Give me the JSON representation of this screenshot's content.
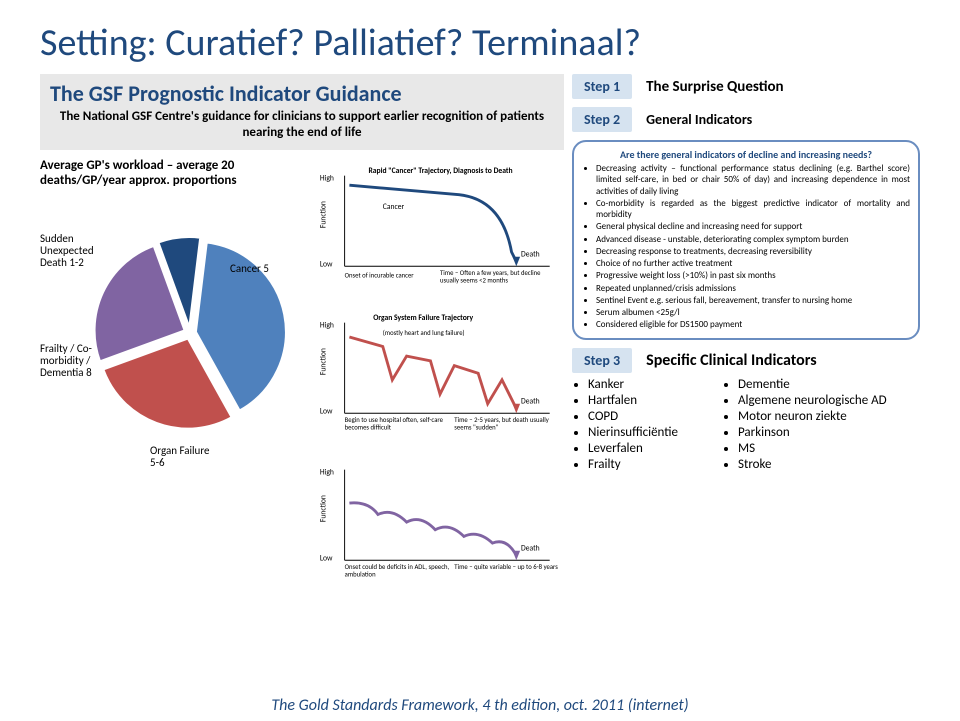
{
  "slide_title": "Setting: Curatief? Palliatief? Terminaal?",
  "gsf": {
    "title": "The GSF Prognostic Indicator Guidance",
    "subtitle": "The National GSF Centre's guidance for clinicians to support earlier recognition of patients nearing the end of life"
  },
  "steps": {
    "s1_badge": "Step 1",
    "s1_label": "The Surprise Question",
    "s2_badge": "Step 2",
    "s2_label": "General Indicators",
    "s3_badge": "Step 3",
    "s3_label": "Specific Clinical Indicators"
  },
  "workload": "Average GP's workload – average 20 deaths/GP/year approx. proportions",
  "pie": {
    "slices": [
      {
        "label": "Sudden Unexpected Death 1-2",
        "value": 7.5,
        "color": "#1f497d"
      },
      {
        "label": "Frailty / Co-morbidity / Dementia 8",
        "value": 40,
        "color": "#4f81bd"
      },
      {
        "label": "Organ Failure 5-6",
        "value": 27.5,
        "color": "#c0504d"
      },
      {
        "label": "Cancer 5",
        "value": 25,
        "color": "#8064a2"
      }
    ],
    "label_fontsize": 11,
    "label_color": "#404040"
  },
  "trajectories": {
    "t1": {
      "title": "Rapid \"Cancer\" Trajectory, Diagnosis to Death",
      "color": "#1f497d",
      "ylabel_high": "High",
      "ylabel_low": "Low",
      "ylabel": "Function",
      "xlabel_left": "Onset of incurable cancer",
      "xlabel_right": "Time – Often a few years, but decline usually seems <2 months",
      "end_label": "Death",
      "sub_label": "Cancer"
    },
    "t2": {
      "title": "Organ System Failure Trajectory",
      "color": "#c0504d",
      "ylabel_high": "High",
      "ylabel_low": "Low",
      "ylabel": "Function",
      "xlabel_left": "Begin to use hospital often, self-care becomes difficult",
      "xlabel_right": "Time – 2-5 years, but death usually seems \"sudden\"",
      "sub_top": "(mostly heart and lung failure)",
      "end_label": "Death"
    },
    "t3": {
      "title": "",
      "color": "#8064a2",
      "ylabel_high": "High",
      "ylabel_low": "Low",
      "ylabel": "Function",
      "xlabel_left": "Onset could be deficits in ADL, speech, ambulation",
      "xlabel_right": "Time – quite variable – up to 6-8 years",
      "end_label": "Death"
    }
  },
  "indicators": {
    "heading": "Are there general indicators of decline and increasing needs?",
    "items": [
      "Decreasing activity – functional performance status declining (e.g. Barthel score) limited self-care, in bed or chair 50% of day) and increasing dependence in most activities of daily living",
      "Co-morbidity is regarded as the biggest predictive indicator of mortality and morbidity",
      "General physical decline and increasing need for support",
      "Advanced disease - unstable, deteriorating complex symptom burden",
      "Decreasing response to treatments, decreasing reversibility",
      "Choice of no further active treatment",
      "Progressive weight loss (>10%) in past six months",
      "Repeated unplanned/crisis admissions",
      "Sentinel Event e.g. serious fall, bereavement, transfer to nursing home",
      "Serum albumen <25g/l",
      "Considered eligible for DS1500 payment"
    ]
  },
  "diseases": {
    "col1": [
      "Kanker",
      "Hartfalen",
      "COPD",
      "Nierinsufficiëntie",
      "Leverfalen",
      "Frailty"
    ],
    "col2": [
      "Dementie",
      "Algemene neurologische AD",
      "Motor neuron ziekte",
      "Parkinson",
      "MS",
      "Stroke"
    ]
  },
  "citation": "The Gold Standards Framework, 4 th edition, oct. 2011 (internet)",
  "colors": {
    "accent": "#1f497d",
    "step_bg": "#d6e3f0",
    "box_border": "#6a8dc0",
    "gsf_bg": "#e8e8e8"
  }
}
